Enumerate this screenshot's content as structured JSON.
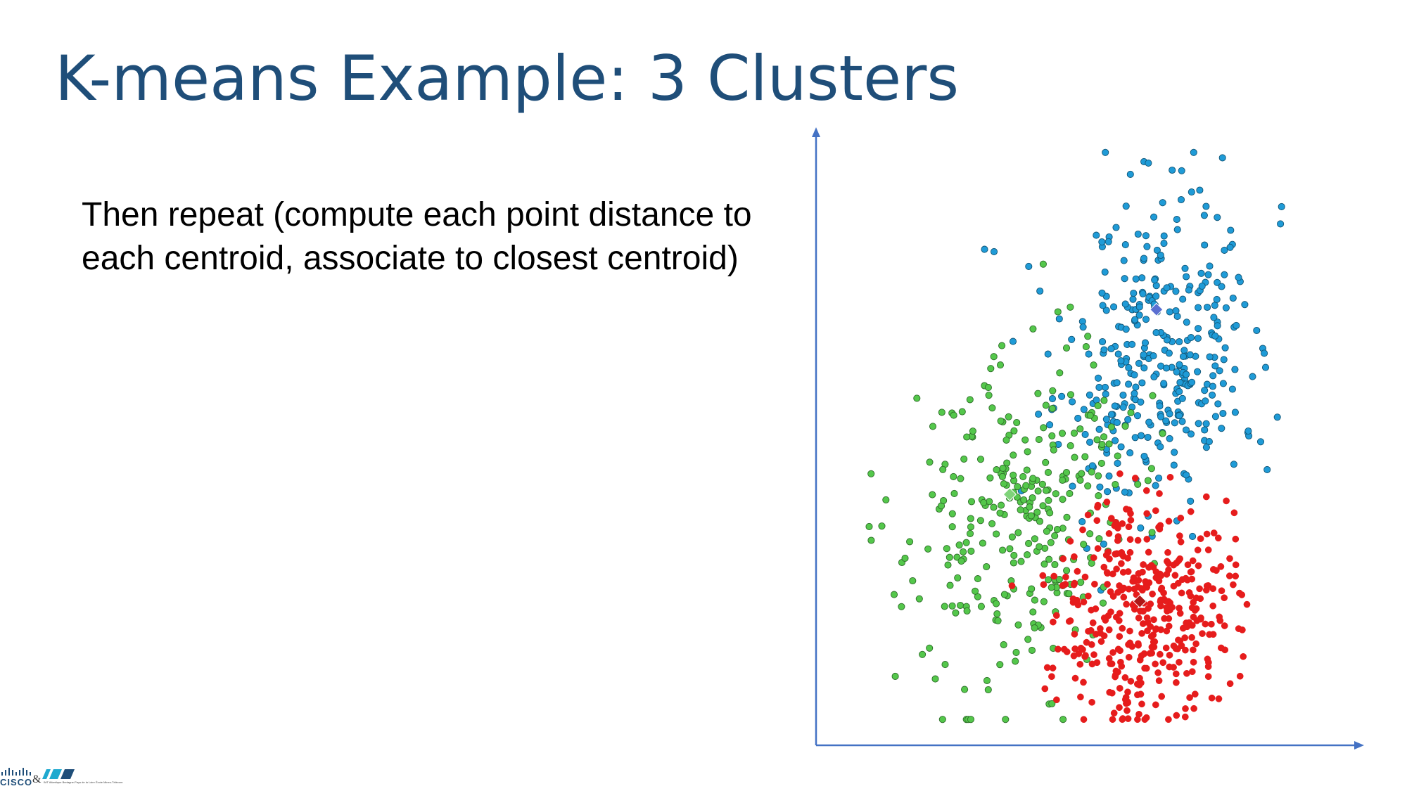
{
  "slide": {
    "title": "K-means Example: 3 Clusters",
    "body_lines": [
      "Then repeat (compute each point distance to",
      "each centroid, associate to closest centroid)"
    ]
  },
  "footer": {
    "cisco_logo_text": "CISCO",
    "ampersand": "&",
    "imt_logo_caption": "IMT Atlantique Bretagne-Pays de la Loire École Mines-Télécom"
  },
  "chart_data": {
    "type": "scatter",
    "title": "",
    "xlabel": "",
    "ylabel": "",
    "xlim": [
      0,
      100
    ],
    "ylim": [
      0,
      100
    ],
    "grid": false,
    "legend": "none",
    "axis_color": "#4472c4",
    "series": [
      {
        "color": "#1f9bd7",
        "centroid": [
          66.5,
          71.4
        ],
        "centroid_color": "#5b6fd1",
        "centroid_marker": "diamond",
        "n_points": 330,
        "center": [
          67.0,
          63.0
        ],
        "spread": [
          9.5,
          13.0
        ],
        "seed": 11,
        "sample_points": [
          [
            80.4,
            97.1
          ],
          [
            64.8,
            96.2
          ],
          [
            69.8,
            95.0
          ],
          [
            71.8,
            94.9
          ],
          [
            61.0,
            94.3
          ],
          [
            71.7,
            90.0
          ],
          [
            73.9,
            91.3
          ],
          [
            67.8,
            89.5
          ],
          [
            60.1,
            88.9
          ],
          [
            79.3,
            87.0
          ],
          [
            58.0,
            85.3
          ],
          [
            30.3,
            81.6
          ],
          [
            32.3,
            81.2
          ],
          [
            39.6,
            78.7
          ],
          [
            66.1,
            76.4
          ],
          [
            77.4,
            77.3
          ],
          [
            80.8,
            77.3
          ],
          [
            55.2,
            72.1
          ],
          [
            83.3,
            68.7
          ],
          [
            89.2,
            64.0
          ],
          [
            78.4,
            60.2
          ],
          [
            83.1,
            54.0
          ],
          [
            89.8,
            44.3
          ],
          [
            82.8,
            45.2
          ],
          [
            36.3,
            66.0
          ],
          [
            44.6,
            56.3
          ]
        ]
      },
      {
        "color": "#54c74b",
        "centroid": [
          35.6,
          40.1
        ],
        "centroid_color": "#7fd37a",
        "centroid_marker": "diamond",
        "n_points": 290,
        "center": [
          38.0,
          36.0
        ],
        "spread": [
          11.5,
          14.0
        ],
        "seed": 23,
        "sample_points": [
          [
            6.4,
            43.6
          ],
          [
            21.3,
            54.0
          ],
          [
            25.6,
            54.1
          ],
          [
            23.8,
            53.5
          ],
          [
            31.6,
            61.4
          ],
          [
            31.1,
            58.2
          ],
          [
            12.8,
            21.1
          ],
          [
            17.2,
            13.0
          ],
          [
            11.5,
            9.3
          ],
          [
            22.0,
            11.3
          ],
          [
            37.4,
            18.0
          ],
          [
            40.3,
            13.7
          ],
          [
            30.1,
            38.7
          ],
          [
            25.4,
            28.8
          ]
        ]
      },
      {
        "color": "#e61c1c",
        "centroid": [
          63.0,
          22.0
        ],
        "centroid_color": "#b01818",
        "centroid_marker": "diamond",
        "n_points": 380,
        "center": [
          64.0,
          21.0
        ],
        "spread": [
          9.0,
          9.0
        ],
        "seed": 37,
        "sample_points": [
          [
            58.8,
            43.6
          ],
          [
            69.4,
            43.0
          ],
          [
            77.0,
            39.7
          ],
          [
            81.2,
            39.0
          ],
          [
            71.6,
            36.1
          ],
          [
            81.9,
            26.3
          ],
          [
            43.0,
            7.2
          ],
          [
            50.5,
            5.8
          ],
          [
            60.3,
            3.5
          ],
          [
            64.4,
            2.3
          ],
          [
            52.9,
            4.9
          ],
          [
            73.5,
            5.7
          ]
        ]
      }
    ]
  }
}
